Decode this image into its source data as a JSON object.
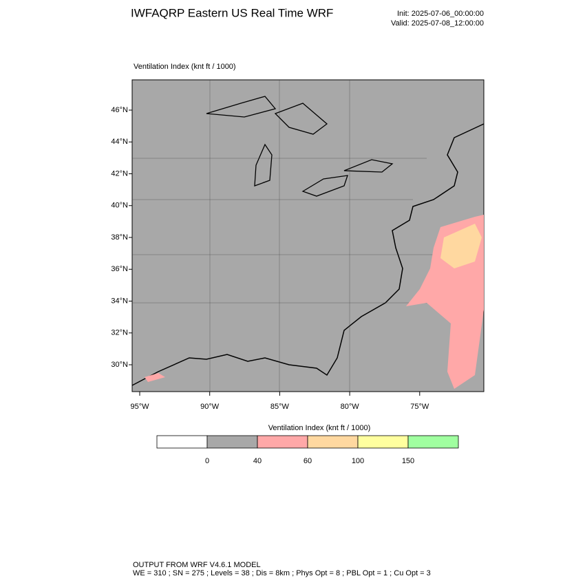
{
  "header": {
    "title": "IWFAQRP Eastern US Real Time WRF",
    "init": "Init: 2025-07-06_00:00:00",
    "valid": "Valid: 2025-07-08_12:00:00"
  },
  "map": {
    "label": "Ventilation Index   (knt ft / 1000)",
    "lat_labels": [
      "46°N",
      "44°N",
      "42°N",
      "40°N",
      "38°N",
      "36°N",
      "34°N",
      "32°N",
      "30°N"
    ],
    "lon_labels": [
      "95°W",
      "90°W",
      "85°W",
      "80°W",
      "75°W"
    ]
  },
  "colorbar": {
    "title": "Ventilation Index  (knt ft / 1000)",
    "colors": [
      "#ffffff",
      "#a8a8a8",
      "#ffa8a8",
      "#ffd8a0",
      "#ffff9f",
      "#a0ffa0"
    ],
    "boundaries": [
      0,
      40,
      60,
      100,
      150
    ]
  },
  "footer": {
    "line1": "OUTPUT FROM WRF V4.6.1 MODEL",
    "line2": "WE = 310 ; SN = 275 ; Levels = 38 ; Dis = 8km ; Phys Opt = 8 ; PBL Opt = 1 ; Cu Opt = 3"
  }
}
